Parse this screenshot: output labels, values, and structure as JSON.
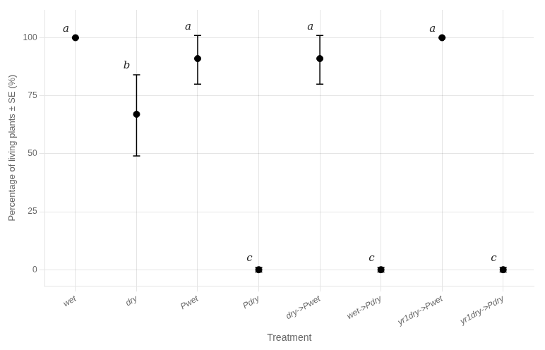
{
  "chart_data": {
    "type": "scatter",
    "xlabel": "Treatment",
    "ylabel": "Percentage of living plants ± SE (%)",
    "categories": [
      "wet",
      "dry",
      "Pwet",
      "Pdry",
      "dry->Pwet",
      "wet->Pdry",
      "yr1dry->Pwet",
      "yr1dry->Pdry"
    ],
    "values": [
      100,
      67,
      91,
      0,
      91,
      0,
      100,
      0
    ],
    "se_upper": [
      0,
      17,
      10,
      1,
      10,
      1,
      0,
      1
    ],
    "se_lower": [
      0,
      18,
      11,
      1,
      11,
      1,
      0,
      1
    ],
    "letters": [
      "a",
      "b",
      "a",
      "c",
      "a",
      "c",
      "a",
      "c"
    ],
    "color": "#000000",
    "marker": "circle",
    "ylim": [
      -7,
      112
    ],
    "yticks": [
      0,
      25,
      50,
      75,
      100
    ],
    "grid": true
  }
}
